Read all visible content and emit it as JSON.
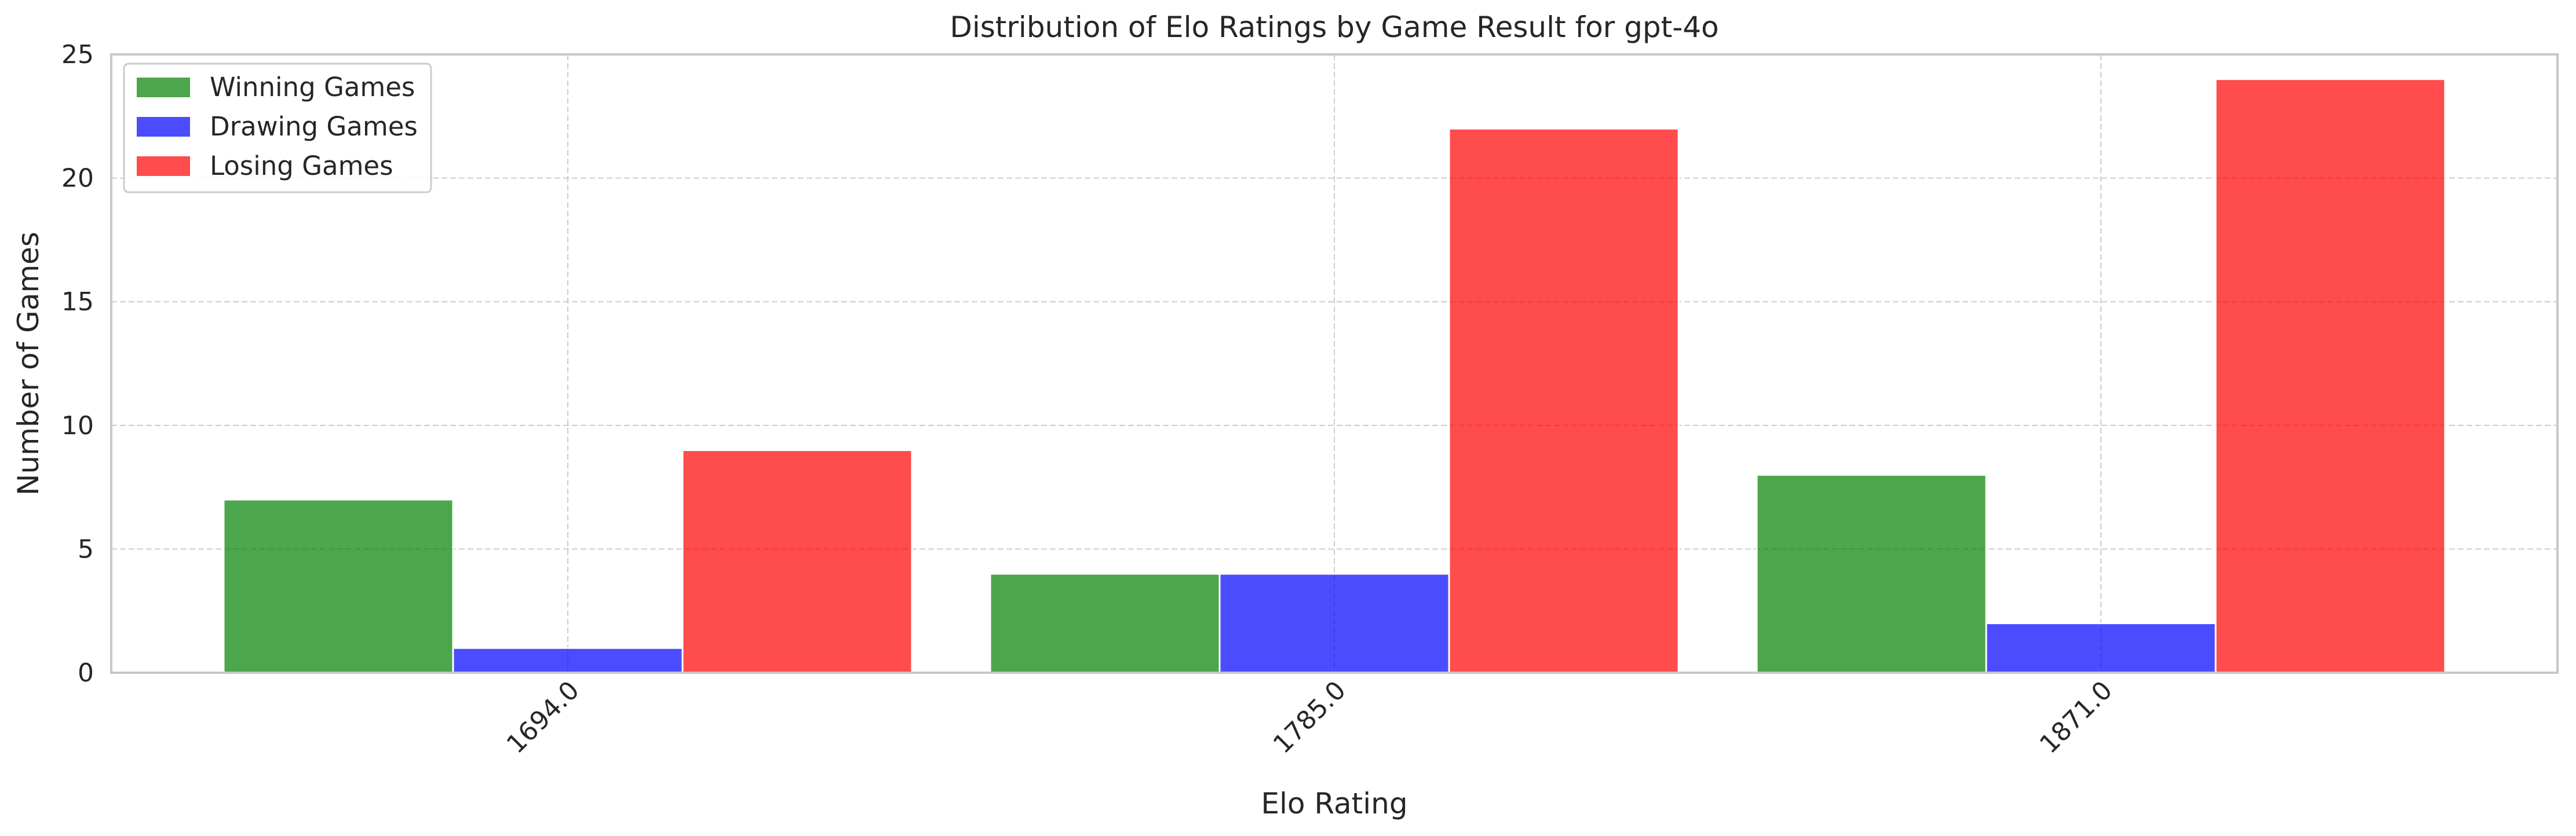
{
  "chart_data": {
    "type": "bar",
    "title": "Distribution of Elo Ratings by Game Result for gpt-4o",
    "xlabel": "Elo Rating",
    "ylabel": "Number of Games",
    "categories": [
      "1694.0",
      "1785.0",
      "1871.0"
    ],
    "series": [
      {
        "name": "Winning Games",
        "values": [
          7,
          4,
          8
        ],
        "color": "#008000"
      },
      {
        "name": "Drawing Games",
        "values": [
          1,
          4,
          2
        ],
        "color": "#0000ff"
      },
      {
        "name": "Losing Games",
        "values": [
          9,
          22,
          24
        ],
        "color": "#ff0000"
      }
    ],
    "ylim": [
      0,
      25
    ],
    "yticks": [
      0,
      5,
      10,
      15,
      20,
      25
    ],
    "grid": true,
    "legend_position": "top-left",
    "bar_opacity": 0.7
  }
}
